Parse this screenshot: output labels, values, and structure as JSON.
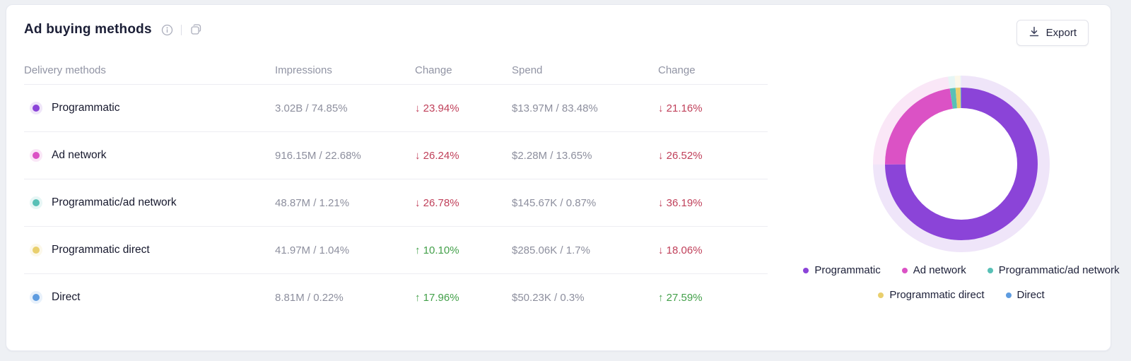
{
  "card": {
    "title": "Ad buying methods",
    "export_label": "Export"
  },
  "icons": {
    "info": "i",
    "copy": "⧉",
    "download": "⤓",
    "up_arrow": "↑",
    "down_arrow": "↓"
  },
  "colors": {
    "negative": "#c0405a",
    "positive": "#43a04a",
    "series": [
      "#8b44d8",
      "#db52c5",
      "#58c0b6",
      "#e9cf6d",
      "#5e9ce0"
    ]
  },
  "table": {
    "headers": [
      "Delivery methods",
      "Impressions",
      "Change",
      "Spend",
      "Change"
    ],
    "rows": [
      {
        "method": "Programmatic",
        "color": "#8b44d8",
        "impressions": "3.02B / 74.85%",
        "impressions_change": "23.94%",
        "impressions_change_dir": "down",
        "spend": "$13.97M / 83.48%",
        "spend_change": "21.16%",
        "spend_change_dir": "down"
      },
      {
        "method": "Ad network",
        "color": "#db52c5",
        "impressions": "916.15M / 22.68%",
        "impressions_change": "26.24%",
        "impressions_change_dir": "down",
        "spend": "$2.28M / 13.65%",
        "spend_change": "26.52%",
        "spend_change_dir": "down"
      },
      {
        "method": "Programmatic/ad network",
        "color": "#58c0b6",
        "impressions": "48.87M / 1.21%",
        "impressions_change": "26.78%",
        "impressions_change_dir": "down",
        "spend": "$145.67K / 0.87%",
        "spend_change": "36.19%",
        "spend_change_dir": "down"
      },
      {
        "method": "Programmatic direct",
        "color": "#e9cf6d",
        "impressions": "41.97M / 1.04%",
        "impressions_change": "10.10%",
        "impressions_change_dir": "up",
        "spend": "$285.06K / 1.7%",
        "spend_change": "18.06%",
        "spend_change_dir": "down"
      },
      {
        "method": "Direct",
        "color": "#5e9ce0",
        "impressions": "8.81M / 0.22%",
        "impressions_change": "17.96%",
        "impressions_change_dir": "up",
        "spend": "$50.23K / 0.3%",
        "spend_change": "27.59%",
        "spend_change_dir": "up"
      }
    ]
  },
  "chart_data": {
    "type": "pie",
    "subtype": "donut",
    "title": "",
    "categories": [
      "Programmatic",
      "Ad network",
      "Programmatic/ad network",
      "Programmatic direct",
      "Direct"
    ],
    "values": [
      74.85,
      22.68,
      1.21,
      1.04,
      0.22
    ],
    "unit": "%",
    "colors": [
      "#8b44d8",
      "#db52c5",
      "#58c0b6",
      "#e9cf6d",
      "#5e9ce0"
    ],
    "legend_position": "bottom",
    "start_angle_deg": 0,
    "direction": "clockwise",
    "outer_halo_ring": true
  }
}
